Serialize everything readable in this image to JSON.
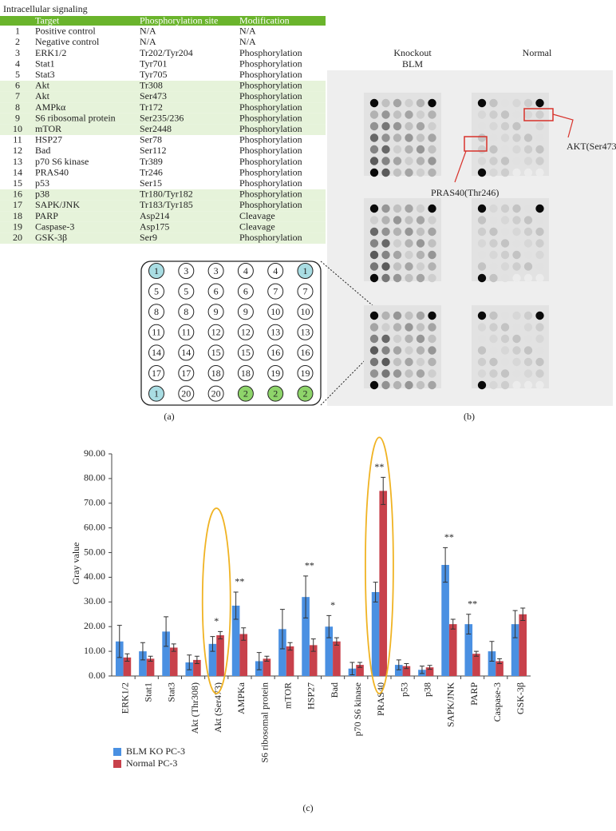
{
  "panel_a": {
    "title": "Intracellular signaling",
    "header": [
      "Target",
      "Phosphorylation site",
      "Modification"
    ],
    "header_color": "#6ab42c",
    "shade_color": "#e6f3da",
    "rows": [
      {
        "no": "1",
        "target": "Positive control",
        "site": "N/A",
        "modification": "N/A",
        "shaded": false
      },
      {
        "no": "2",
        "target": "Negative control",
        "site": "N/A",
        "modification": "N/A",
        "shaded": false
      },
      {
        "no": "3",
        "target": "ERK1/2",
        "site": "Tr202/Tyr204",
        "modification": "Phosphorylation",
        "shaded": false
      },
      {
        "no": "4",
        "target": "Stat1",
        "site": "Tyr701",
        "modification": "Phosphorylation",
        "shaded": false
      },
      {
        "no": "5",
        "target": "Stat3",
        "site": "Tyr705",
        "modification": "Phosphorylation",
        "shaded": false
      },
      {
        "no": "6",
        "target": "Akt",
        "site": "Tr308",
        "modification": "Phosphorylation",
        "shaded": true
      },
      {
        "no": "7",
        "target": "Akt",
        "site": "Ser473",
        "modification": "Phosphorylation",
        "shaded": true
      },
      {
        "no": "8",
        "target": "AMPkα",
        "site": "Tr172",
        "modification": "Phosphorylation",
        "shaded": true
      },
      {
        "no": "9",
        "target": "S6 ribosomal protein",
        "site": "Ser235/236",
        "modification": "Phosphorylation",
        "shaded": true
      },
      {
        "no": "10",
        "target": "mTOR",
        "site": "Ser2448",
        "modification": "Phosphorylation",
        "shaded": true
      },
      {
        "no": "11",
        "target": "HSP27",
        "site": "Ser78",
        "modification": "Phosphorylation",
        "shaded": false
      },
      {
        "no": "12",
        "target": "Bad",
        "site": "Ser112",
        "modification": "Phosphorylation",
        "shaded": false
      },
      {
        "no": "13",
        "target": "p70 S6 kinase",
        "site": "Tr389",
        "modification": "Phosphorylation",
        "shaded": false
      },
      {
        "no": "14",
        "target": "PRAS40",
        "site": "Tr246",
        "modification": "Phosphorylation",
        "shaded": false
      },
      {
        "no": "15",
        "target": "p53",
        "site": "Ser15",
        "modification": "Phosphorylation",
        "shaded": false
      },
      {
        "no": "16",
        "target": "p38",
        "site": "Tr180/Tyr182",
        "modification": "Phosphorylation",
        "shaded": true
      },
      {
        "no": "17",
        "target": "SAPK/JNK",
        "site": "Tr183/Tyr185",
        "modification": "Phosphorylation",
        "shaded": true
      },
      {
        "no": "18",
        "target": "PARP",
        "site": "Asp214",
        "modification": "Cleavage",
        "shaded": true
      },
      {
        "no": "19",
        "target": "Caspase-3",
        "site": "Asp175",
        "modification": "Cleavage",
        "shaded": true
      },
      {
        "no": "20",
        "target": "GSK-3β",
        "site": "Ser9",
        "modification": "Phosphorylation",
        "shaded": true
      }
    ],
    "array": [
      [
        "1",
        "3",
        "3",
        "4",
        "4",
        "1"
      ],
      [
        "5",
        "5",
        "6",
        "6",
        "7",
        "7"
      ],
      [
        "8",
        "8",
        "9",
        "9",
        "10",
        "10"
      ],
      [
        "11",
        "11",
        "12",
        "12",
        "13",
        "13"
      ],
      [
        "14",
        "14",
        "15",
        "15",
        "16",
        "16"
      ],
      [
        "17",
        "17",
        "18",
        "18",
        "19",
        "19"
      ],
      [
        "1",
        "20",
        "20",
        "2",
        "2",
        "2"
      ]
    ],
    "spot_colors": {
      "1": "#a9dde3",
      "2": "#8ed46a"
    },
    "label": "(a)"
  },
  "panel_b": {
    "column_labels": [
      [
        "Knockout",
        "BLM"
      ],
      [
        "Normal"
      ]
    ],
    "annotations": [
      "AKT(Ser473)",
      "PRAS40(Thr246)"
    ],
    "label": "(b)"
  },
  "chart_data": {
    "type": "bar",
    "ylabel": "Gray value",
    "categories": [
      "ERK1/2",
      "Stat1",
      "Stat3",
      "Akt (Thr308)",
      "Akt (Ser473)",
      "AMPKa",
      "S6 ribosomal protein",
      "mTOR",
      "HSP27",
      "Bad",
      "p70 S6 kinase",
      "PRAS40",
      "p53",
      "p38",
      "SAPK/JNK",
      "PARP",
      "Caspase-3",
      "GSK-3β"
    ],
    "series": [
      {
        "name": "BLM KO PC-3",
        "color": "#4a90e2",
        "values": [
          14,
          10,
          18,
          5.5,
          13,
          28.5,
          6,
          19,
          32,
          20,
          3,
          34,
          4.5,
          2.5,
          45,
          21,
          10,
          21
        ],
        "errors": [
          6.5,
          3.5,
          6,
          3,
          3,
          5.5,
          3.5,
          8,
          8.5,
          4.5,
          2.5,
          4,
          2,
          1.5,
          7,
          4,
          4,
          5.5
        ]
      },
      {
        "name": "Normal PC-3",
        "color": "#c8414b",
        "values": [
          7.5,
          7,
          11.5,
          6.5,
          16.5,
          17,
          7,
          12,
          12.5,
          14,
          4.5,
          75,
          4,
          3.5,
          21,
          9,
          6,
          25
        ],
        "errors": [
          1.5,
          1,
          1.5,
          1.5,
          1.5,
          2.5,
          1,
          1.5,
          2.5,
          1.5,
          1,
          5.5,
          1,
          0.8,
          2,
          1,
          1,
          2.5
        ]
      }
    ],
    "significance": [
      null,
      null,
      null,
      null,
      "*",
      "**",
      null,
      null,
      "**",
      "*",
      null,
      "**",
      null,
      null,
      "**",
      "**",
      null,
      null
    ],
    "highlighted": [
      false,
      false,
      false,
      false,
      true,
      false,
      false,
      false,
      false,
      false,
      false,
      true,
      false,
      false,
      false,
      false,
      false,
      false
    ],
    "highlight_color": "#f0b323",
    "ylim": [
      0,
      90
    ],
    "yticks": [
      {
        "value": 0,
        "label": "0.00"
      },
      {
        "value": 10,
        "label": "10.00"
      },
      {
        "value": 20,
        "label": "20.00"
      },
      {
        "value": 30,
        "label": "30.00"
      },
      {
        "value": 40,
        "label": "40.00"
      },
      {
        "value": 50,
        "label": "50.00"
      },
      {
        "value": 60,
        "label": "60.00"
      },
      {
        "value": 70,
        "label": "70.00"
      },
      {
        "value": 80,
        "label": "80.00"
      },
      {
        "value": 90,
        "label": "90.00"
      }
    ],
    "legend": "bottom-left",
    "label": "(c)"
  }
}
